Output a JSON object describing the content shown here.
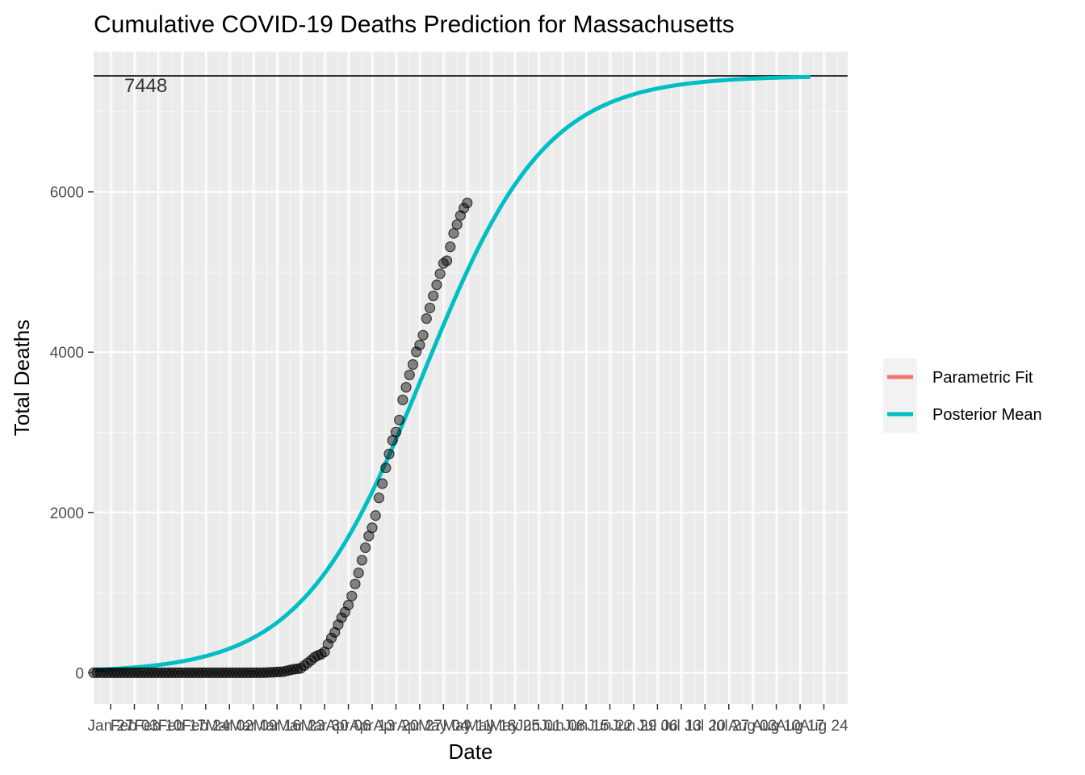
{
  "chart_data": {
    "type": "line",
    "title": "Cumulative COVID-19 Deaths Prediction for Massachusetts",
    "xlabel": "Date",
    "ylabel": "Total Deaths",
    "x_date_range": [
      "2020-01-22",
      "2020-08-31"
    ],
    "ylim": [
      -390,
      7750
    ],
    "y_ticks": [
      0,
      2000,
      4000,
      6000
    ],
    "x_ticks": [
      {
        "date": "2020-01-27",
        "label": "Jan 27"
      },
      {
        "date": "2020-02-03",
        "label": "Feb 03"
      },
      {
        "date": "2020-02-10",
        "label": "Feb 10"
      },
      {
        "date": "2020-02-17",
        "label": "Feb 17"
      },
      {
        "date": "2020-02-24",
        "label": "Feb 24"
      },
      {
        "date": "2020-03-02",
        "label": "Mar 02"
      },
      {
        "date": "2020-03-09",
        "label": "Mar 09"
      },
      {
        "date": "2020-03-16",
        "label": "Mar 16"
      },
      {
        "date": "2020-03-23",
        "label": "Mar 23"
      },
      {
        "date": "2020-03-30",
        "label": "Mar 30"
      },
      {
        "date": "2020-04-06",
        "label": "Apr 06"
      },
      {
        "date": "2020-04-13",
        "label": "Apr 13"
      },
      {
        "date": "2020-04-20",
        "label": "Apr 20"
      },
      {
        "date": "2020-04-27",
        "label": "Apr 27"
      },
      {
        "date": "2020-05-04",
        "label": "May 04"
      },
      {
        "date": "2020-05-11",
        "label": "May 11"
      },
      {
        "date": "2020-05-18",
        "label": "May 18"
      },
      {
        "date": "2020-05-25",
        "label": "May 25"
      },
      {
        "date": "2020-06-01",
        "label": "Jun 01"
      },
      {
        "date": "2020-06-08",
        "label": "Jun 08"
      },
      {
        "date": "2020-06-15",
        "label": "Jun 15"
      },
      {
        "date": "2020-06-22",
        "label": "Jun 22"
      },
      {
        "date": "2020-06-29",
        "label": "Jun 29"
      },
      {
        "date": "2020-07-06",
        "label": "Jul 06"
      },
      {
        "date": "2020-07-13",
        "label": "Jul 13"
      },
      {
        "date": "2020-07-20",
        "label": "Jul 20"
      },
      {
        "date": "2020-07-27",
        "label": "Jul 27"
      },
      {
        "date": "2020-08-03",
        "label": "Aug 03"
      },
      {
        "date": "2020-08-10",
        "label": "Aug 10"
      },
      {
        "date": "2020-08-17",
        "label": "Aug 17"
      },
      {
        "date": "2020-08-24",
        "label": "Aug 24"
      }
    ],
    "asymptote": {
      "value": 7448,
      "label": "7448"
    },
    "observed_points": {
      "start_date": "2020-01-22",
      "values": [
        0,
        0,
        0,
        0,
        0,
        0,
        0,
        0,
        0,
        0,
        0,
        0,
        0,
        0,
        0,
        0,
        0,
        0,
        0,
        0,
        0,
        0,
        0,
        0,
        0,
        0,
        0,
        0,
        0,
        0,
        0,
        0,
        0,
        0,
        0,
        0,
        0,
        0,
        0,
        0,
        0,
        0,
        0,
        0,
        0,
        0,
        0,
        0,
        0,
        0,
        1,
        2,
        5,
        6,
        9,
        11,
        15,
        25,
        35,
        44,
        48,
        56,
        89,
        122,
        154,
        192,
        216,
        231,
        260,
        356,
        433,
        503,
        599,
        686,
        756,
        844,
        957,
        1108,
        1245,
        1404,
        1560,
        1706,
        1809,
        1961,
        2182,
        2360,
        2556,
        2730,
        2899,
        3003,
        3153,
        3405,
        3562,
        3716,
        3846,
        4004,
        4090,
        4212,
        4420,
        4552,
        4702,
        4840,
        4979,
        5108,
        5141,
        5315,
        5482,
        5592,
        5705,
        5797,
        5862
      ]
    },
    "series": [
      {
        "name": "Parametric Fit",
        "color": "#F8766D"
      },
      {
        "name": "Posterior Mean",
        "color": "#00BFC4",
        "curve": {
          "asymptote": 7448,
          "midpoint_date": "2020-04-28",
          "scale_days": 18,
          "end_date": "2020-08-20"
        }
      }
    ],
    "legend_position": "right",
    "grid": true
  }
}
